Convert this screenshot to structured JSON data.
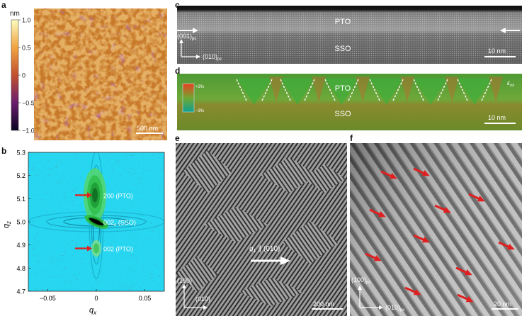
{
  "panel_labels": {
    "a": "a",
    "b": "b",
    "c": "c",
    "d": "d",
    "e": "e",
    "f": "f"
  },
  "panel_a": {
    "unit": "nm",
    "colorbar_ticks": [
      "1.0",
      "0.5",
      "0",
      "−0.5",
      "−1.0"
    ],
    "colorbar_values": [
      1.0,
      0.5,
      0,
      -0.5,
      -1.0
    ],
    "scalebar": "500 nm"
  },
  "panel_b": {
    "chart_data": {
      "type": "heatmap",
      "xlabel": "q",
      "xlabel_sub": "x",
      "ylabel": "q",
      "ylabel_sub": "z",
      "xlim": [
        -0.07,
        0.07
      ],
      "ylim": [
        4.7,
        5.3
      ],
      "xticks": [
        "−0.05",
        "0",
        "0.05"
      ],
      "xtick_values": [
        -0.05,
        0,
        0.05
      ],
      "yticks": [
        "4.7",
        "4.8",
        "4.9",
        "5.0",
        "5.1",
        "5.2",
        "5.3"
      ],
      "ytick_values": [
        4.7,
        4.8,
        4.9,
        5.0,
        5.1,
        5.2,
        5.3
      ],
      "annotations": [
        {
          "text": "200 (PTO)",
          "x": 0.0,
          "y": 5.115
        },
        {
          "text": "002",
          "sub": "o",
          "tail": " (SSO)",
          "x": 0.0,
          "y": 5.0
        },
        {
          "text": "002 (PTO)",
          "x": 0.0,
          "y": 4.885
        }
      ]
    }
  },
  "panel_c": {
    "layer_top": "PTO",
    "layer_bottom": "SSO",
    "axis_vertical": "(001)",
    "axis_vertical_sub": "pc",
    "axis_horizontal": "(010)",
    "axis_horizontal_sub": "pc",
    "scalebar": "10 nm"
  },
  "panel_d": {
    "layer_top": "PTO",
    "layer_bottom": "SSO",
    "map_symbol": "ε",
    "map_symbol_sub": "xx",
    "legend_top": "+3%",
    "legend_bottom": "−3%",
    "scalebar": "10 nm"
  },
  "panel_e": {
    "vector_label": "q",
    "vector_label_sub": "1",
    "vector_direction": "(010)",
    "axis_vertical": "(100)",
    "axis_horizontal": "(010)",
    "scalebar": "200 nm"
  },
  "panel_f": {
    "axis_vertical": "(100)",
    "axis_vertical_sub": "pc",
    "axis_horizontal": "(010)",
    "axis_horizontal_sub": "pc",
    "scalebar": "20 nm"
  },
  "colors": {
    "arrow_red": "#e02020",
    "afm_mid": "#c87a2a",
    "contour_bg": "#27d6f0",
    "pto_strain": "#6fa83a"
  }
}
